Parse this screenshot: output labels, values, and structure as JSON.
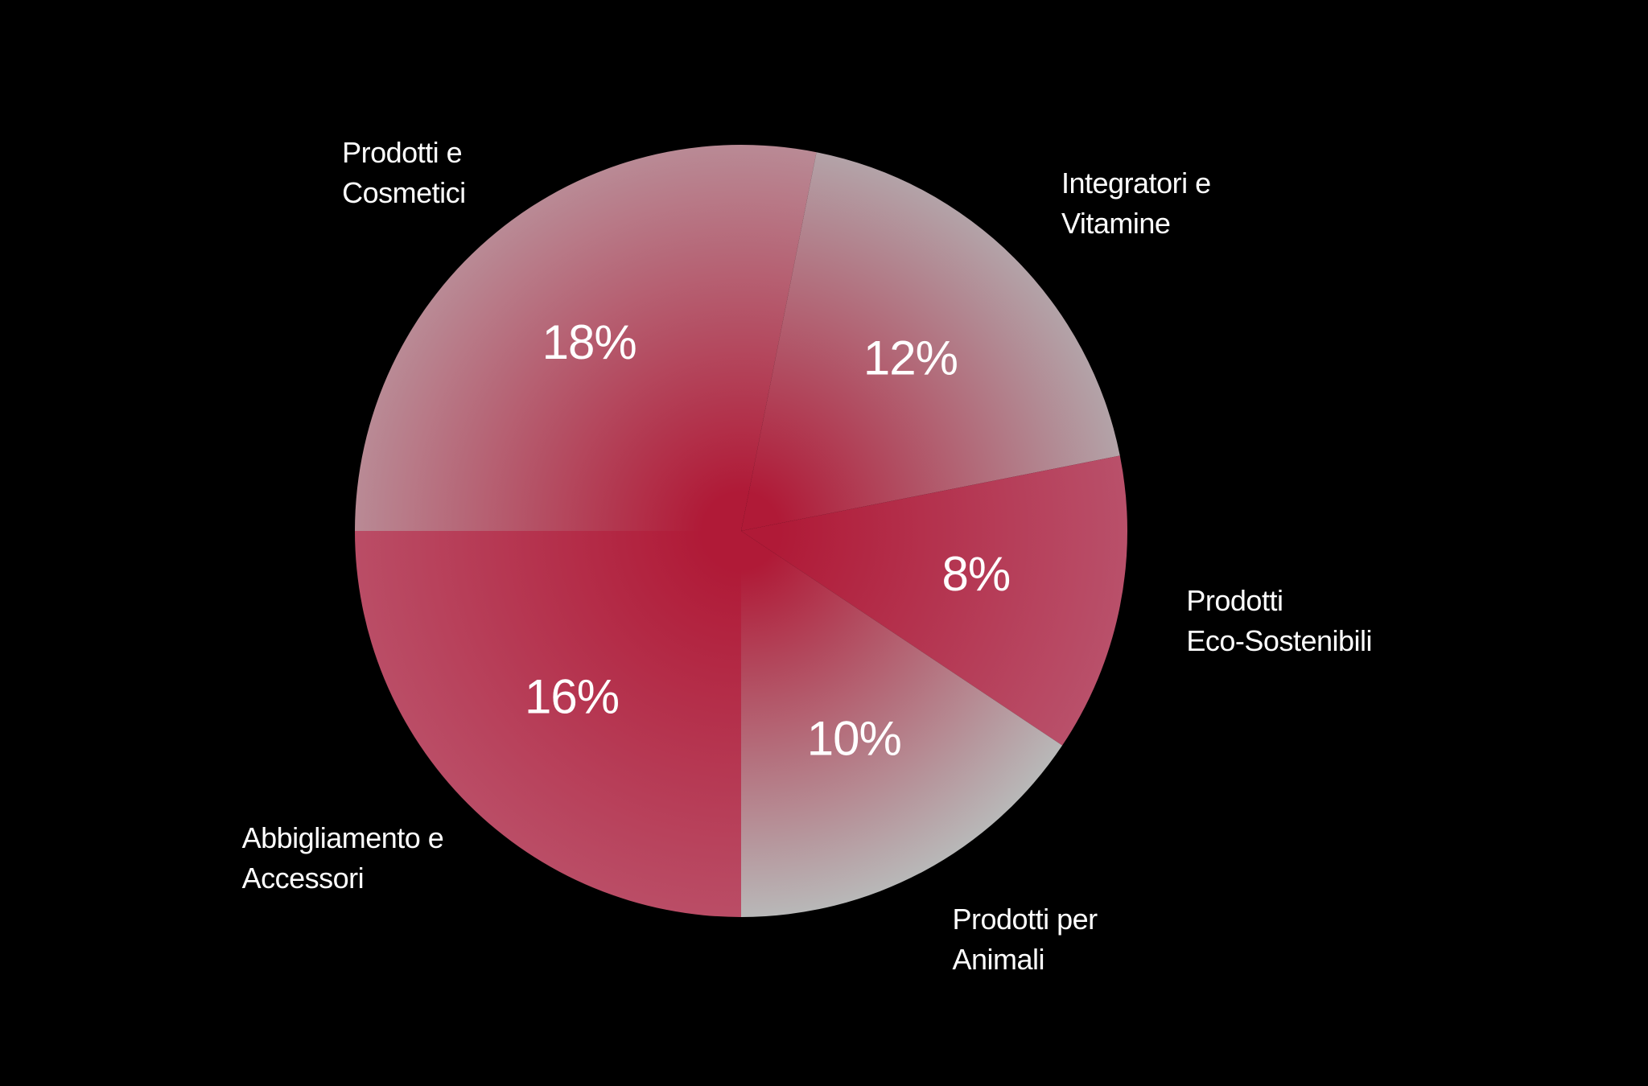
{
  "chart_data": {
    "type": "pie",
    "categories": [
      "Prodotti e\nCosmetici",
      "Integratori e\nVitamine",
      "Prodotti\nEco-Sostenibili",
      "Prodotti per\nAnimali",
      "Abbigliamento e\nAccessori"
    ],
    "values": [
      18,
      12,
      8,
      10,
      16
    ],
    "value_labels": [
      "18%",
      "12%",
      "8%",
      "10%",
      "16%"
    ],
    "colors": [
      "#b98a95",
      "#b3a3a8",
      "#b9506a",
      "#b8b8b8",
      "#ba4d66"
    ],
    "gradient_center_color": "#b01a37"
  }
}
